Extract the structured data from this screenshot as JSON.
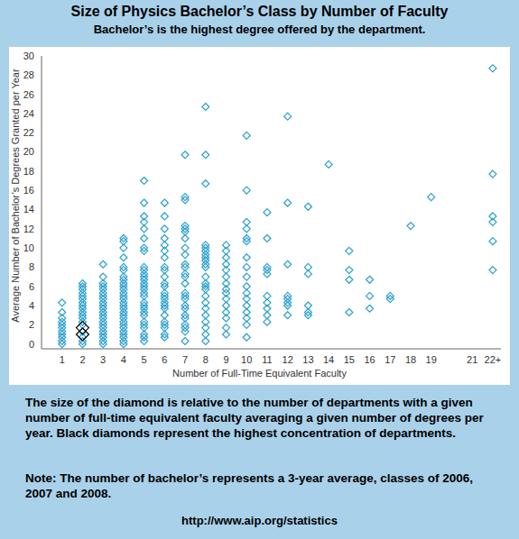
{
  "chart_data": {
    "type": "scatter",
    "title": "Size of Physics Bachelor’s Class by Number of Faculty",
    "subtitle": "Bachelor’s is the highest degree offered by the department.",
    "x_label": "Number of Full-Time Equivalent Faculty",
    "y_label": "Average Number of Bachelor’s Degrees Granted per Year",
    "notes": [
      "The size of the diamond is relative to the number of departments with a given number of full-time equivalent faculty averaging a given number of degrees per year.  Black diamonds represent the highest concentration of departments.",
      "Note: The number of bachelor’s represents a 3-year average, classes of 2006, 2007 and 2008.",
      "http://www.aip.org/statistics"
    ],
    "xlim": [
      0,
      22.4
    ],
    "xticks": [
      1,
      2,
      3,
      4,
      5,
      6,
      7,
      8,
      9,
      10,
      11,
      12,
      13,
      14,
      15,
      16,
      17,
      18,
      19,
      21,
      {
        "value": 22,
        "label": "22+"
      }
    ],
    "ylim": [
      -0.5,
      30
    ],
    "yticks": [
      0,
      2,
      4,
      6,
      8,
      10,
      12,
      14,
      16,
      18,
      20,
      22,
      24,
      26,
      28,
      30
    ],
    "grid": false,
    "series": [
      {
        "color": "#2a9fd0",
        "marker": "diamond",
        "x": [
          1,
          1,
          1,
          1,
          1,
          1,
          1,
          1,
          1,
          1,
          1,
          2,
          2,
          2,
          2,
          2,
          2,
          2,
          2,
          2,
          2,
          2,
          2,
          2,
          2,
          2,
          2,
          2,
          2,
          3,
          3,
          3,
          3,
          3,
          3,
          3,
          3,
          3,
          3,
          3,
          3,
          3,
          3,
          3,
          3,
          3,
          3,
          3,
          3,
          3,
          3,
          4,
          4,
          4,
          4,
          4,
          4,
          4,
          4,
          4,
          4,
          4,
          4,
          4,
          4,
          4,
          4,
          4,
          4,
          4,
          4,
          4,
          4,
          4,
          4,
          4,
          4,
          4,
          4,
          5,
          5,
          5,
          5,
          5,
          5,
          5,
          5,
          5,
          5,
          5,
          5,
          5,
          5,
          5,
          5,
          5,
          5,
          5,
          5,
          5,
          5,
          5,
          5,
          5,
          5,
          5,
          5,
          5,
          6,
          6,
          6,
          6,
          6,
          6,
          6,
          6,
          6,
          6,
          6,
          6,
          6,
          6,
          6,
          6,
          6,
          6,
          6,
          6,
          6,
          6,
          6,
          6,
          7,
          7,
          7,
          7,
          7,
          7,
          7,
          7,
          7,
          7,
          7,
          7,
          7,
          7,
          7,
          7,
          7,
          7,
          7,
          7,
          7,
          7,
          7,
          7,
          7,
          8,
          8,
          8,
          8,
          8,
          8,
          8,
          8,
          8,
          8,
          8,
          8,
          8,
          8,
          8,
          8,
          8,
          8,
          8,
          8,
          8,
          8,
          8,
          9,
          9,
          9,
          9,
          9,
          9,
          9,
          9,
          9,
          9,
          9,
          9,
          9,
          9,
          9,
          10,
          10,
          10,
          10,
          10,
          10,
          10,
          10,
          10,
          10,
          10,
          10,
          10,
          10,
          10,
          10,
          10,
          11,
          11,
          11,
          11,
          11,
          11,
          11,
          11,
          11,
          11,
          12,
          12,
          12,
          12,
          12,
          12,
          12,
          12,
          13,
          13,
          13,
          13,
          13,
          13,
          14,
          15,
          15,
          15,
          15,
          16,
          16,
          16,
          17,
          17,
          18,
          19,
          22,
          22,
          22,
          22,
          22,
          22
        ],
        "values": [
          0,
          0.3,
          0.7,
          1,
          1.3,
          1.7,
          2,
          2.3,
          2.7,
          3.3,
          4.3,
          0,
          0.3,
          0.7,
          1.3,
          2,
          2.3,
          2.7,
          3,
          3.3,
          3.7,
          4,
          4.3,
          4.7,
          5,
          5.3,
          5.7,
          6,
          6.3,
          0,
          0.3,
          0.7,
          1,
          1.3,
          1.7,
          2,
          2.3,
          2.7,
          3,
          3.3,
          3.7,
          4,
          4.3,
          4.7,
          5,
          5.3,
          5.7,
          6,
          6.3,
          7,
          8.3,
          0,
          0.3,
          0.7,
          1,
          1.3,
          1.7,
          2,
          2.3,
          2.7,
          3,
          3.3,
          3.7,
          4,
          4.3,
          4.7,
          5,
          5.3,
          5.7,
          6,
          6.3,
          6.7,
          7,
          7.7,
          8,
          9,
          10,
          10.7,
          11,
          0.3,
          0.7,
          1,
          1.7,
          2,
          2.3,
          3,
          3.3,
          3.7,
          4,
          4.3,
          5,
          5.3,
          5.7,
          6,
          6.3,
          6.7,
          7,
          7.3,
          7.7,
          8,
          9.7,
          10,
          11,
          12,
          12.7,
          13.3,
          14.7,
          17,
          0.7,
          1,
          1.7,
          2,
          2.3,
          3,
          3.7,
          4,
          4.3,
          4.7,
          5,
          5.3,
          6,
          6.3,
          7,
          7.7,
          8,
          9,
          9.7,
          10.3,
          11,
          12,
          13.3,
          14.7,
          0.3,
          1.3,
          1.7,
          2,
          2.7,
          3,
          3.7,
          4,
          4.7,
          5,
          5.3,
          6.3,
          7,
          7.3,
          8,
          8.3,
          9.3,
          10,
          11,
          11.7,
          12,
          12.3,
          15,
          15.3,
          19.7,
          0.3,
          1,
          1.7,
          2.3,
          3,
          3.7,
          4.3,
          5,
          5.7,
          6,
          6.3,
          7,
          8,
          8.3,
          8.7,
          9,
          9.3,
          9.7,
          10,
          10.3,
          16.7,
          19.7,
          24.7,
          1,
          1.7,
          2.7,
          3.3,
          4,
          4.7,
          5.3,
          5.7,
          6.3,
          7,
          7.7,
          8.3,
          9,
          9.7,
          10.3,
          0.7,
          2,
          2.7,
          3.3,
          4,
          4.7,
          5.3,
          6,
          7,
          8,
          9,
          10.7,
          11,
          12,
          12.7,
          16,
          21.7,
          2.3,
          3,
          3.7,
          4.3,
          5,
          7.3,
          7.7,
          8,
          11,
          13.7,
          3,
          4,
          4.3,
          4.7,
          5,
          8.3,
          14.7,
          23.7,
          3,
          3.3,
          4,
          7.3,
          8,
          14.3,
          18.7,
          3.3,
          6.7,
          7.7,
          9.7,
          3.7,
          5,
          6.7,
          4.7,
          5,
          12.3,
          15.3,
          7.7,
          10.7,
          12.7,
          13.3,
          17.7,
          28.7
        ]
      },
      {
        "color": "#000000",
        "marker": "diamond",
        "x": [
          2,
          2
        ],
        "values": [
          1,
          1.7
        ]
      }
    ]
  }
}
